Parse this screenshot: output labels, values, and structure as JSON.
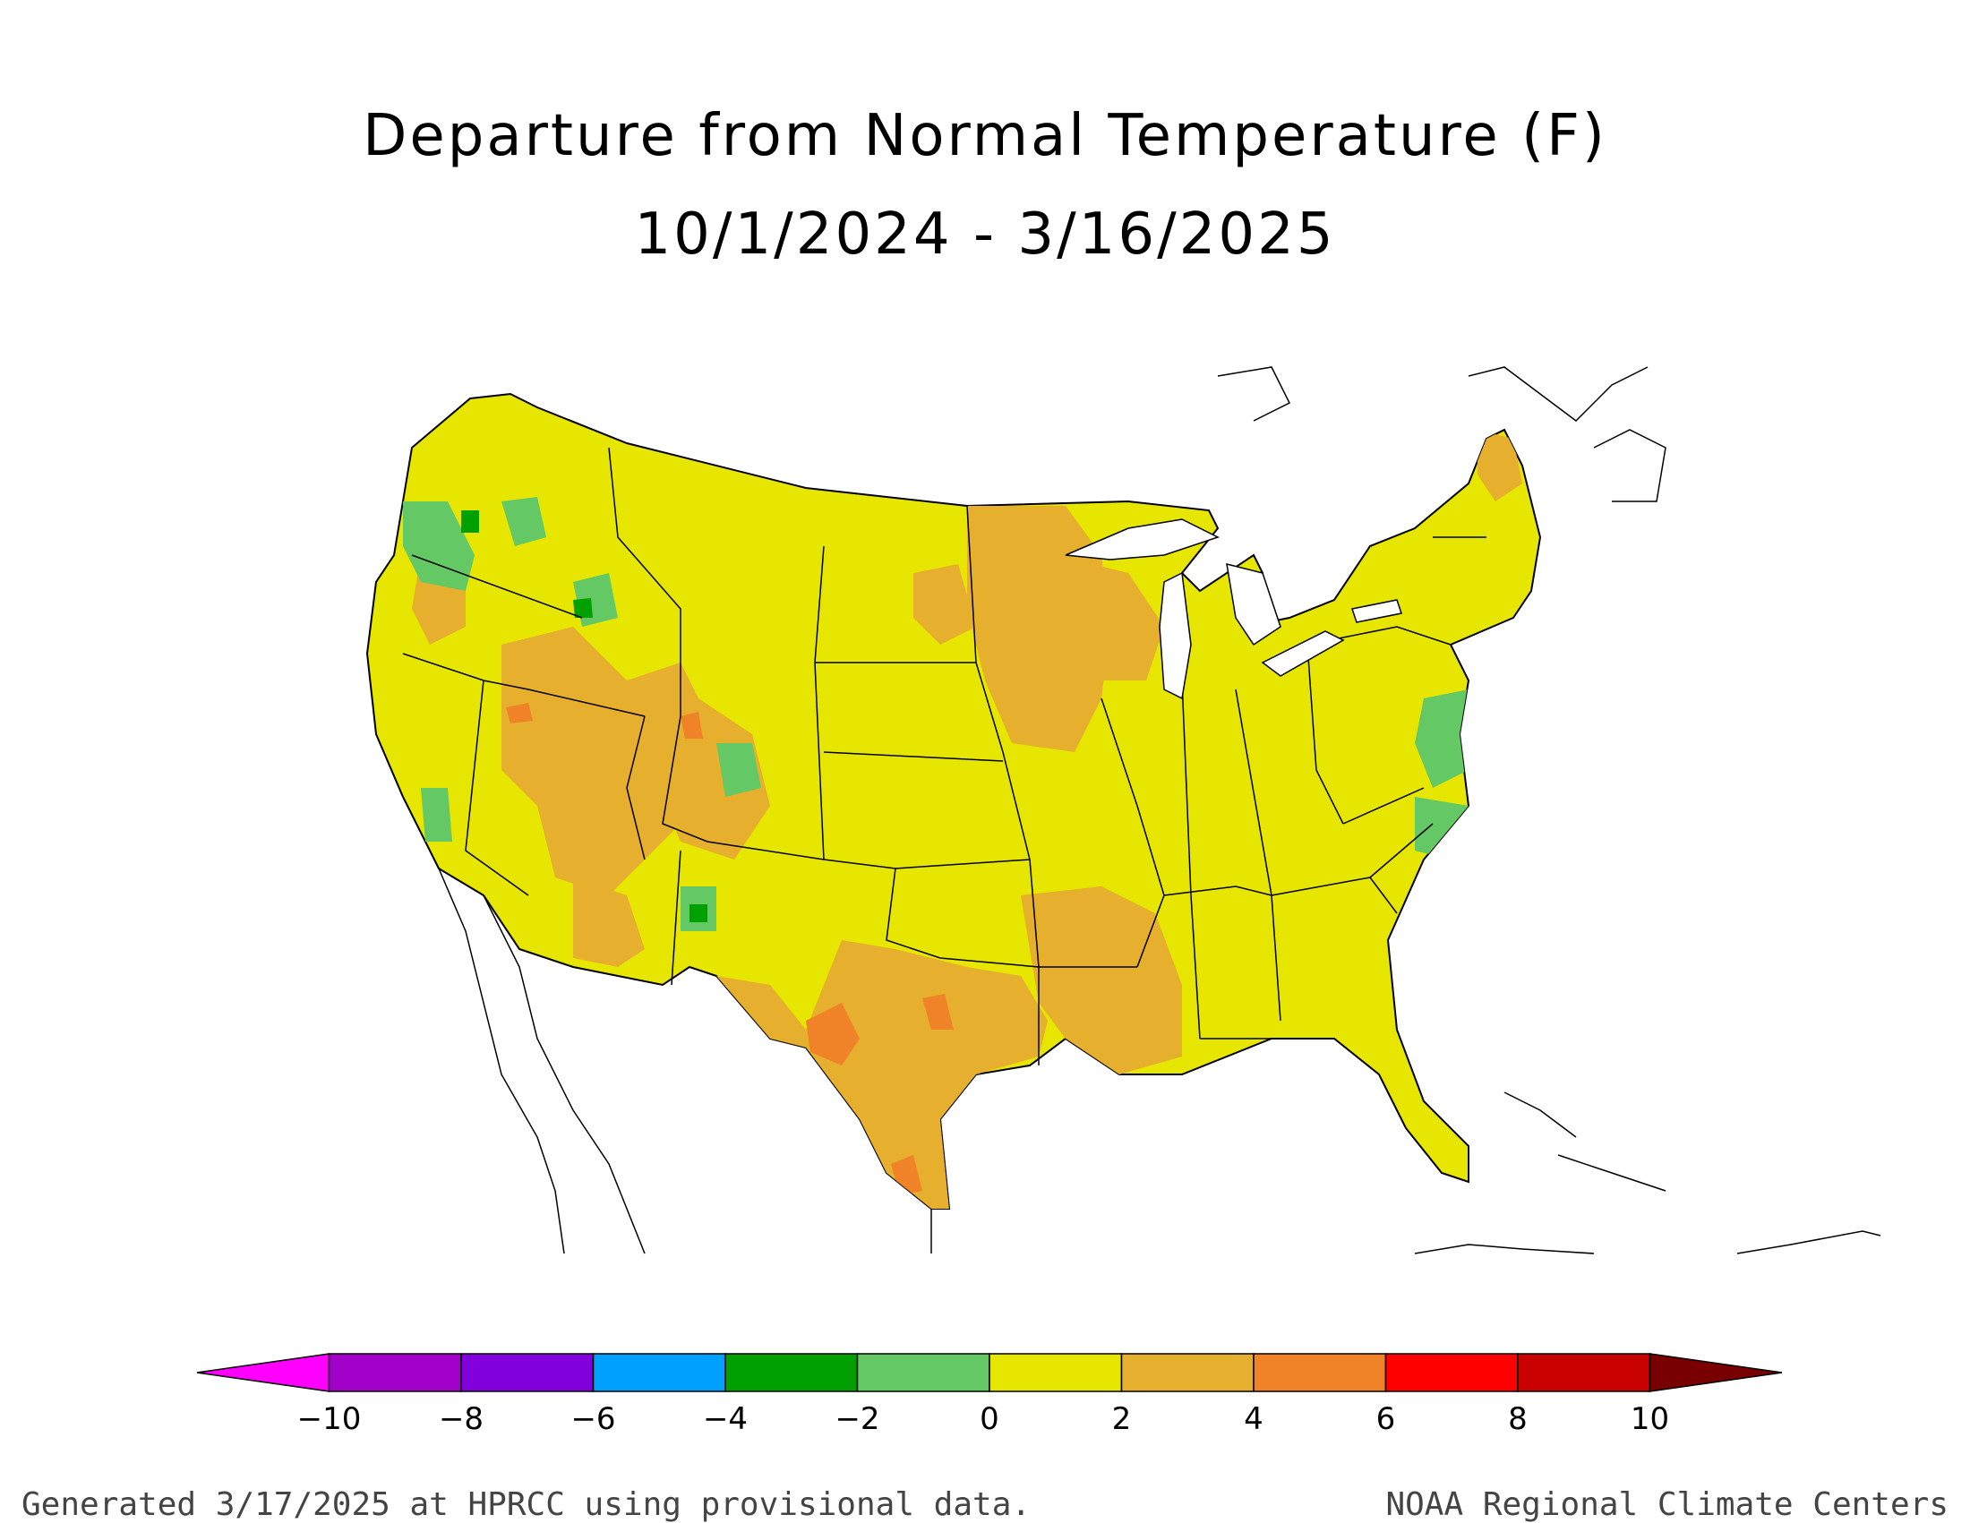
{
  "title_line1": "Departure from Normal Temperature (F)",
  "title_line2": "10/1/2024 - 3/16/2025",
  "colorbar": {
    "labels": [
      "-10",
      "-8",
      "-6",
      "-4",
      "-2",
      "0",
      "2",
      "4",
      "6",
      "8",
      "10"
    ],
    "colors": [
      "#ff00ff",
      "#a000c8",
      "#8200dc",
      "#00a0ff",
      "#00a000",
      "#64c864",
      "#e6e600",
      "#e6af2d",
      "#f08228",
      "#ff0000",
      "#c80000",
      "#780000"
    ]
  },
  "footer_left": "Generated 3/17/2025 at HPRCC using provisional data.",
  "footer_right": "NOAA Regional Climate Centers",
  "map_regions": [
    {
      "area": "Pacific Northwest coast",
      "category": "-2 to 0"
    },
    {
      "area": "West Coast / Great Basin",
      "category": "0 to 2"
    },
    {
      "area": "Nevada / Utah interior",
      "category": "2 to 4"
    },
    {
      "area": "Northern Plains",
      "category": "0 to 2"
    },
    {
      "area": "Minnesota / Iowa",
      "category": "2 to 4"
    },
    {
      "area": "Texas / Lower Mississippi Valley",
      "category": "2 to 4"
    },
    {
      "area": "South-central Texas",
      "category": "4 to 6"
    },
    {
      "area": "Eastern US",
      "category": "0 to 2"
    },
    {
      "area": "Mid-Atlantic coast",
      "category": "-2 to 0"
    },
    {
      "area": "Northern Maine",
      "category": "2 to 4"
    }
  ]
}
